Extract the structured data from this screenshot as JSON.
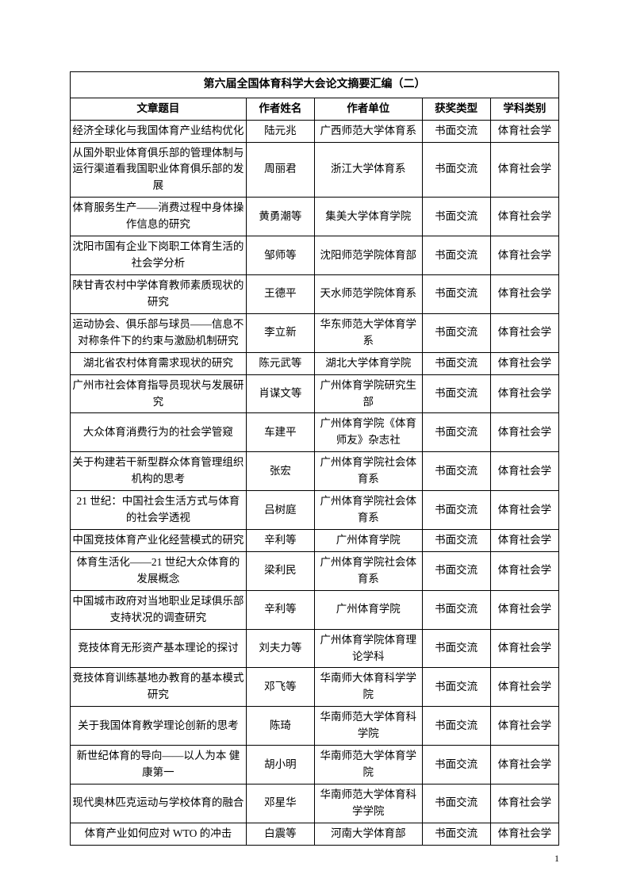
{
  "document_title": "第六届全国体育科学大会论文摘要汇编（二）",
  "page_number": "1",
  "columns": {
    "c0": "文章题目",
    "c1": "作者姓名",
    "c2": "作者单位",
    "c3": "获奖类型",
    "c4": "学科类别"
  },
  "rows": [
    {
      "c0": "经济全球化与我国体育产业结构优化",
      "c1": "陆元兆",
      "c2": "广西师范大学体育系",
      "c3": "书面交流",
      "c4": "体育社会学"
    },
    {
      "c0": "从国外职业体育俱乐部的管理体制与运行渠道看我国职业体育俱乐部的发展",
      "c1": "周丽君",
      "c2": "浙江大学体育系",
      "c3": "书面交流",
      "c4": "体育社会学"
    },
    {
      "c0": "体育服务生产——消费过程中身体操作信息的研究",
      "c1": "黄勇潮等",
      "c2": "集美大学体育学院",
      "c3": "书面交流",
      "c4": "体育社会学"
    },
    {
      "c0": "沈阳市国有企业下岗职工体育生活的社会学分析",
      "c1": "邹师等",
      "c2": "沈阳师范学院体育部",
      "c3": "书面交流",
      "c4": "体育社会学"
    },
    {
      "c0": "陕甘青农村中学体育教师素质现状的研究",
      "c1": "王德平",
      "c2": "天水师范学院体育系",
      "c3": "书面交流",
      "c4": "体育社会学"
    },
    {
      "c0": "运动协会、俱乐部与球员——信息不对称条件下的约束与激励机制研究",
      "c1": "李立新",
      "c2": "华东师范大学体育学系",
      "c3": "书面交流",
      "c4": "体育社会学"
    },
    {
      "c0": "湖北省农村体育需求现状的研究",
      "c1": "陈元武等",
      "c2": "湖北大学体育学院",
      "c3": "书面交流",
      "c4": "体育社会学"
    },
    {
      "c0": "广州市社会体育指导员现状与发展研究",
      "c1": "肖谋文等",
      "c2": "广州体育学院研究生部",
      "c3": "书面交流",
      "c4": "体育社会学"
    },
    {
      "c0": "大众体育消费行为的社会学管窥",
      "c1": "车建平",
      "c2": "广州体育学院《体育师友》杂志社",
      "c3": "书面交流",
      "c4": "体育社会学"
    },
    {
      "c0": "关于构建若干新型群众体育管理组织机构的思考",
      "c1": "张宏",
      "c2": "广州体育学院社会体育系",
      "c3": "书面交流",
      "c4": "体育社会学"
    },
    {
      "c0": "21 世纪：中国社会生活方式与体育的社会学透视",
      "c1": "吕树庭",
      "c2": "广州体育学院社会体育系",
      "c3": "书面交流",
      "c4": "体育社会学"
    },
    {
      "c0": "中国竞技体育产业化经营模式的研究",
      "c1": "辛利等",
      "c2": "广州体育学院",
      "c3": "书面交流",
      "c4": "体育社会学"
    },
    {
      "c0": "体育生活化——21 世纪大众体育的发展概念",
      "c1": "梁利民",
      "c2": "广州体育学院社会体育系",
      "c3": "书面交流",
      "c4": "体育社会学"
    },
    {
      "c0": "中国城市政府对当地职业足球俱乐部支持状况的调查研究",
      "c1": "辛利等",
      "c2": "广州体育学院",
      "c3": "书面交流",
      "c4": "体育社会学"
    },
    {
      "c0": "竞技体育无形资产基本理论的探讨",
      "c1": "刘夫力等",
      "c2": "广州体育学院体育理论学科",
      "c3": "书面交流",
      "c4": "体育社会学"
    },
    {
      "c0": "竞技体育训练基地办教育的基本模式研究",
      "c1": "邓飞等",
      "c2": "华南师大体育科学学院",
      "c3": "书面交流",
      "c4": "体育社会学"
    },
    {
      "c0": "关于我国体育教学理论创新的思考",
      "c1": "陈琦",
      "c2": "华南师范大学体育科学院",
      "c3": "书面交流",
      "c4": "体育社会学"
    },
    {
      "c0": "新世纪体育的导向——以人为本 健康第一",
      "c1": "胡小明",
      "c2": "华南师范大学体育学院",
      "c3": "书面交流",
      "c4": "体育社会学"
    },
    {
      "c0": "现代奥林匹克运动与学校体育的融合",
      "c1": "邓星华",
      "c2": "华南师范大学体育科学学院",
      "c3": "书面交流",
      "c4": "体育社会学"
    },
    {
      "c0": "体育产业如何应对 WTO 的冲击",
      "c1": "白震等",
      "c2": "河南大学体育部",
      "c3": "书面交流",
      "c4": "体育社会学"
    }
  ]
}
